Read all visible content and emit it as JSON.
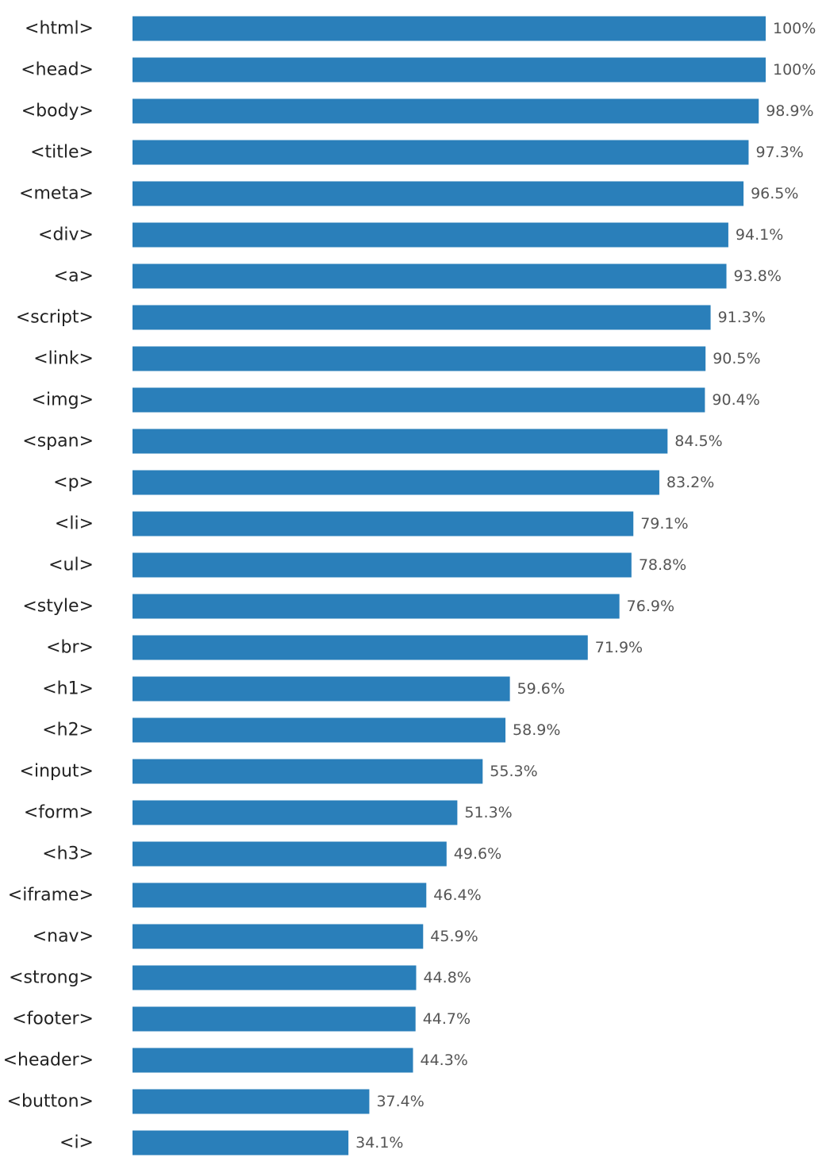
{
  "chart_data": {
    "type": "bar",
    "orientation": "horizontal",
    "title": "",
    "xlabel": "",
    "ylabel": "",
    "xlim": [
      0,
      100
    ],
    "grid": false,
    "legend": "none",
    "bar_color": "#2a7fba",
    "value_suffix": "%",
    "categories": [
      "<html>",
      "<head>",
      "<body>",
      "<title>",
      "<meta>",
      "<div>",
      "<a>",
      "<script>",
      "<link>",
      "<img>",
      "<span>",
      "<p>",
      "<li>",
      "<ul>",
      "<style>",
      "<br>",
      "<h1>",
      "<h2>",
      "<input>",
      "<form>",
      "<h3>",
      "<iframe>",
      "<nav>",
      "<strong>",
      "<footer>",
      "<header>",
      "<button>",
      "<i>"
    ],
    "values": [
      100,
      100,
      98.9,
      97.3,
      96.5,
      94.1,
      93.8,
      91.3,
      90.5,
      90.4,
      84.5,
      83.2,
      79.1,
      78.8,
      76.9,
      71.9,
      59.6,
      58.9,
      55.3,
      51.3,
      49.6,
      46.4,
      45.9,
      44.8,
      44.7,
      44.3,
      37.4,
      34.1
    ],
    "value_labels": [
      "100%",
      "100%",
      "98.9%",
      "97.3%",
      "96.5%",
      "94.1%",
      "93.8%",
      "91.3%",
      "90.5%",
      "90.4%",
      "84.5%",
      "83.2%",
      "79.1%",
      "78.8%",
      "76.9%",
      "71.9%",
      "59.6%",
      "58.9%",
      "55.3%",
      "51.3%",
      "49.6%",
      "46.4%",
      "45.9%",
      "44.8%",
      "44.7%",
      "44.3%",
      "37.4%",
      "34.1%"
    ]
  }
}
